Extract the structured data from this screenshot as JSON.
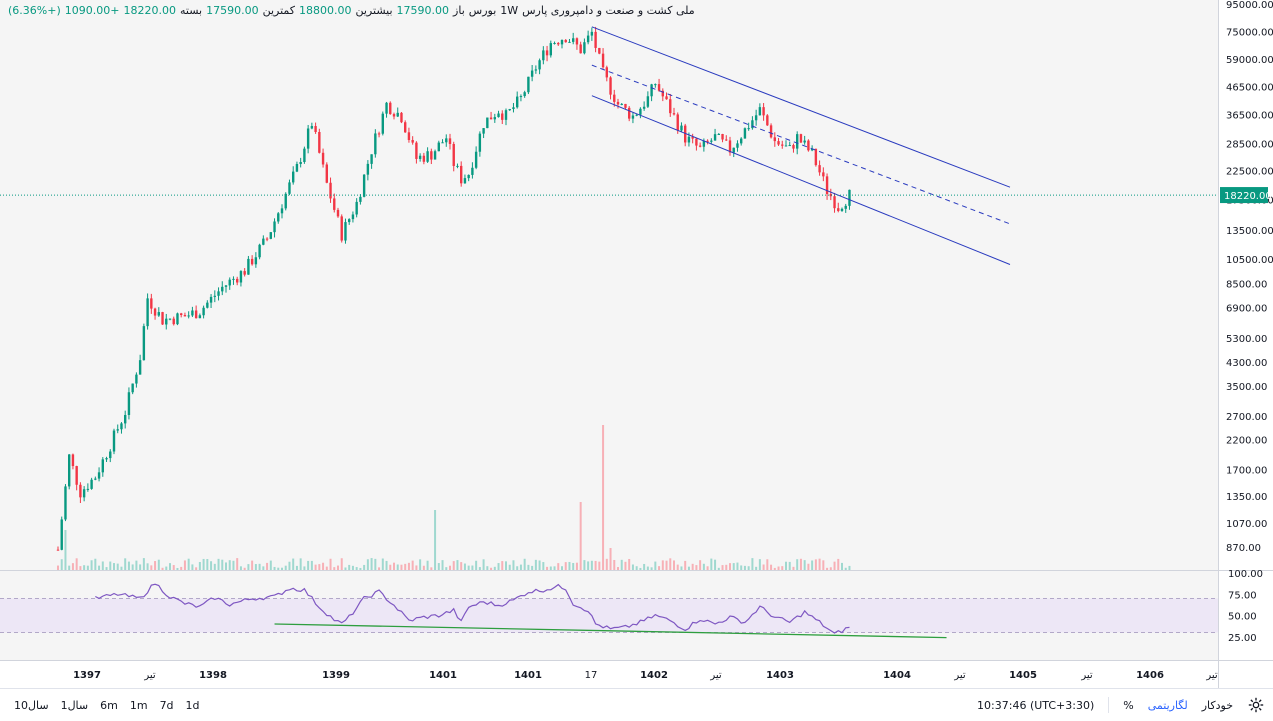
{
  "legend": {
    "name": "ملی کشت و صنعت و دامپروری پارس",
    "interval": "1W",
    "exchange": "بورس",
    "open_label": "باز",
    "open": "17590.00",
    "high_label": "بیشترین",
    "high": "18800.00",
    "low_label": "کمترین",
    "low": "17590.00",
    "close_label": "بسته",
    "close": "18220.00",
    "change": "+1090.00",
    "change_pct": "(+6.36%)"
  },
  "bottom_bar": {
    "ranges": [
      "10سال",
      "1سال",
      "6m",
      "1m",
      "7d",
      "1d"
    ],
    "time": "10:37:46 (UTC+3:30)",
    "percent": "%",
    "log": "لگاریتمی",
    "auto": "خودکار"
  },
  "colors": {
    "up": "#089981",
    "down": "#f23645",
    "channel": "#2a3bbf",
    "rsi": "#7e57c2",
    "trend": "#2e9e3f"
  },
  "chart_data": {
    "type": "candlestick",
    "scale": "log",
    "price_axis": [
      "95000.00",
      "75000.00",
      "59000.00",
      "46500.00",
      "36500.00",
      "28500.00",
      "22500.00",
      "17500.00",
      "13500.00",
      "10500.00",
      "8500.00",
      "6900.00",
      "5300.00",
      "4300.00",
      "3500.00",
      "2700.00",
      "2200.00",
      "1700.00",
      "1350.00",
      "1070.00",
      "870.00"
    ],
    "price_ticks": [
      95000,
      75000,
      59000,
      46500,
      36500,
      28500,
      22500,
      17500,
      13500,
      10500,
      8500,
      6900,
      5300,
      4300,
      3500,
      2700,
      2200,
      1700,
      1350,
      1070,
      870
    ],
    "last_price": "18220.00",
    "last_price_value": 18220,
    "time_axis": [
      "1397",
      "تیر",
      "1398",
      "1399",
      "1401",
      "1401",
      "17",
      "1402",
      "تیر",
      "1403",
      "1404",
      "تیر",
      "1405",
      "تیر",
      "1406",
      "تیر"
    ],
    "price_path": [
      [
        0,
        850
      ],
      [
        3,
        1900
      ],
      [
        6,
        1400
      ],
      [
        10,
        1600
      ],
      [
        14,
        2100
      ],
      [
        18,
        2800
      ],
      [
        22,
        4500
      ],
      [
        24,
        7500
      ],
      [
        28,
        6200
      ],
      [
        34,
        6400
      ],
      [
        38,
        6700
      ],
      [
        44,
        8200
      ],
      [
        50,
        9500
      ],
      [
        56,
        12500
      ],
      [
        60,
        17000
      ],
      [
        64,
        23000
      ],
      [
        68,
        34000
      ],
      [
        72,
        20000
      ],
      [
        76,
        13000
      ],
      [
        80,
        17000
      ],
      [
        84,
        27000
      ],
      [
        88,
        40000
      ],
      [
        92,
        36000
      ],
      [
        96,
        25000
      ],
      [
        100,
        26000
      ],
      [
        104,
        30000
      ],
      [
        106,
        24000
      ],
      [
        108,
        21000
      ],
      [
        110,
        22000
      ],
      [
        114,
        34000
      ],
      [
        118,
        38000
      ],
      [
        120,
        36000
      ],
      [
        124,
        42000
      ],
      [
        128,
        55000
      ],
      [
        132,
        68000
      ],
      [
        136,
        72000
      ],
      [
        140,
        64000
      ],
      [
        143,
        74000
      ],
      [
        146,
        52000
      ],
      [
        150,
        40000
      ],
      [
        154,
        36000
      ],
      [
        158,
        42000
      ],
      [
        160,
        48000
      ],
      [
        164,
        38000
      ],
      [
        168,
        30000
      ],
      [
        172,
        27000
      ],
      [
        176,
        30000
      ],
      [
        180,
        27000
      ],
      [
        184,
        32000
      ],
      [
        188,
        38000
      ],
      [
        192,
        29000
      ],
      [
        196,
        27000
      ],
      [
        198,
        30000
      ],
      [
        202,
        26000
      ],
      [
        206,
        19000
      ],
      [
        209,
        16500
      ],
      [
        212,
        18220
      ]
    ],
    "channel": {
      "upper": [
        [
          143,
          78000
        ],
        [
          255,
          19500
        ]
      ],
      "middle": [
        [
          143,
          56000
        ],
        [
          255,
          14200
        ]
      ],
      "lower": [
        [
          143,
          43000
        ],
        [
          255,
          10000
        ]
      ]
    },
    "rsi": {
      "ticks": [
        "100.00",
        "75.00",
        "50.00",
        "25.00"
      ],
      "tick_values": [
        100,
        75,
        50,
        25
      ],
      "band": [
        30,
        70
      ],
      "path": [
        [
          10,
          70
        ],
        [
          16,
          75
        ],
        [
          22,
          70
        ],
        [
          26,
          88
        ],
        [
          30,
          72
        ],
        [
          34,
          64
        ],
        [
          38,
          60
        ],
        [
          42,
          71
        ],
        [
          46,
          63
        ],
        [
          52,
          70
        ],
        [
          58,
          72
        ],
        [
          62,
          82
        ],
        [
          66,
          80
        ],
        [
          70,
          60
        ],
        [
          74,
          45
        ],
        [
          76,
          40
        ],
        [
          78,
          48
        ],
        [
          82,
          70
        ],
        [
          86,
          78
        ],
        [
          90,
          62
        ],
        [
          94,
          44
        ],
        [
          98,
          48
        ],
        [
          102,
          50
        ],
        [
          106,
          56
        ],
        [
          108,
          42
        ],
        [
          110,
          60
        ],
        [
          114,
          66
        ],
        [
          118,
          62
        ],
        [
          122,
          68
        ],
        [
          126,
          78
        ],
        [
          130,
          80
        ],
        [
          134,
          84
        ],
        [
          136,
          82
        ],
        [
          138,
          64
        ],
        [
          142,
          56
        ],
        [
          144,
          40
        ],
        [
          148,
          34
        ],
        [
          152,
          36
        ],
        [
          156,
          42
        ],
        [
          160,
          50
        ],
        [
          164,
          44
        ],
        [
          168,
          34
        ],
        [
          172,
          46
        ],
        [
          176,
          40
        ],
        [
          180,
          48
        ],
        [
          184,
          42
        ],
        [
          188,
          60
        ],
        [
          192,
          48
        ],
        [
          196,
          42
        ],
        [
          200,
          54
        ],
        [
          204,
          42
        ],
        [
          208,
          28
        ],
        [
          212,
          36
        ]
      ],
      "trend": [
        [
          58,
          40
        ],
        [
          238,
          24
        ]
      ]
    }
  }
}
